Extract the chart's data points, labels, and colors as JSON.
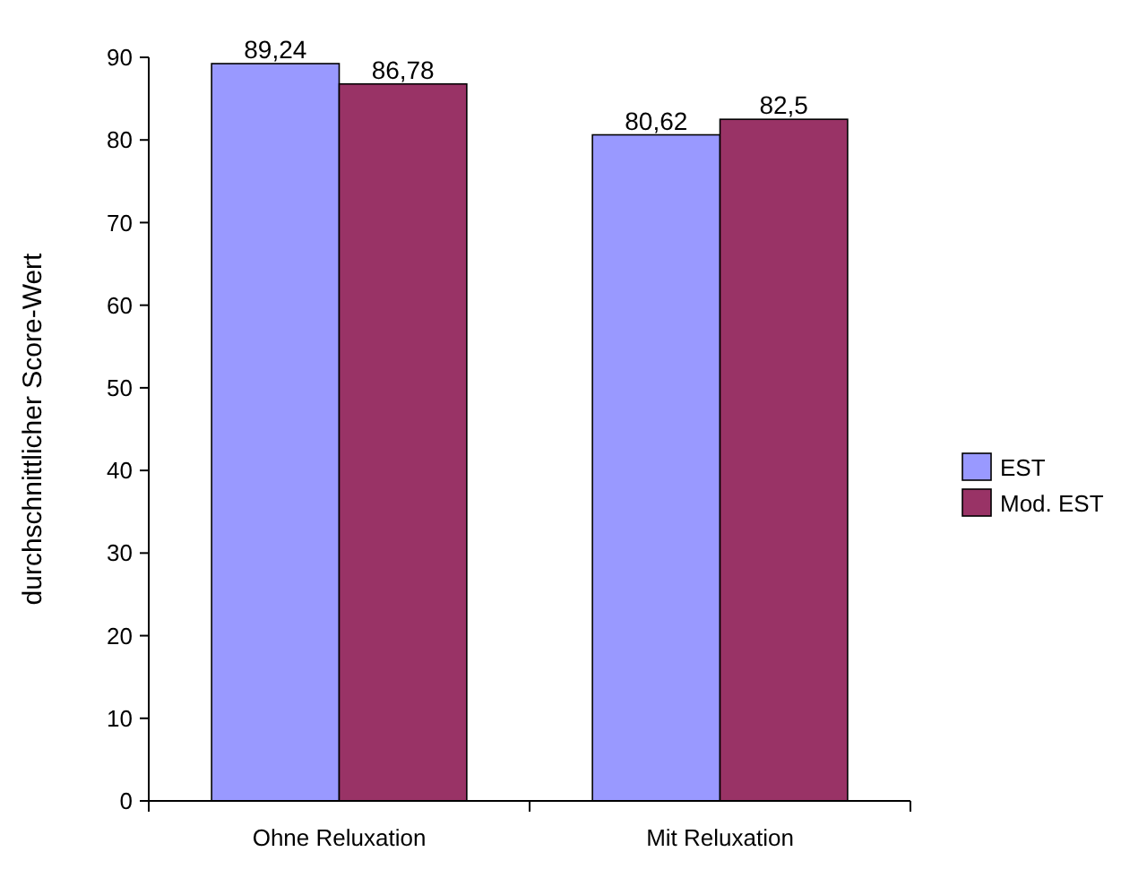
{
  "chart_data": {
    "type": "bar",
    "ylabel": "durchschnittlicher Score-Wert",
    "categories": [
      "Ohne Reluxation",
      "Mit Reluxation"
    ],
    "series": [
      {
        "name": "EST",
        "color": "#9999ff",
        "values": [
          89.24,
          80.62
        ],
        "value_labels": [
          "89,24",
          "80,62"
        ]
      },
      {
        "name": "Mod. EST",
        "color": "#993366",
        "values": [
          86.78,
          82.5
        ],
        "value_labels": [
          "86,78",
          "82,5"
        ]
      }
    ],
    "ylim": [
      0,
      90
    ],
    "yticks": [
      0,
      10,
      20,
      30,
      40,
      50,
      60,
      70,
      80,
      90
    ],
    "grid": false,
    "legend": "right"
  }
}
